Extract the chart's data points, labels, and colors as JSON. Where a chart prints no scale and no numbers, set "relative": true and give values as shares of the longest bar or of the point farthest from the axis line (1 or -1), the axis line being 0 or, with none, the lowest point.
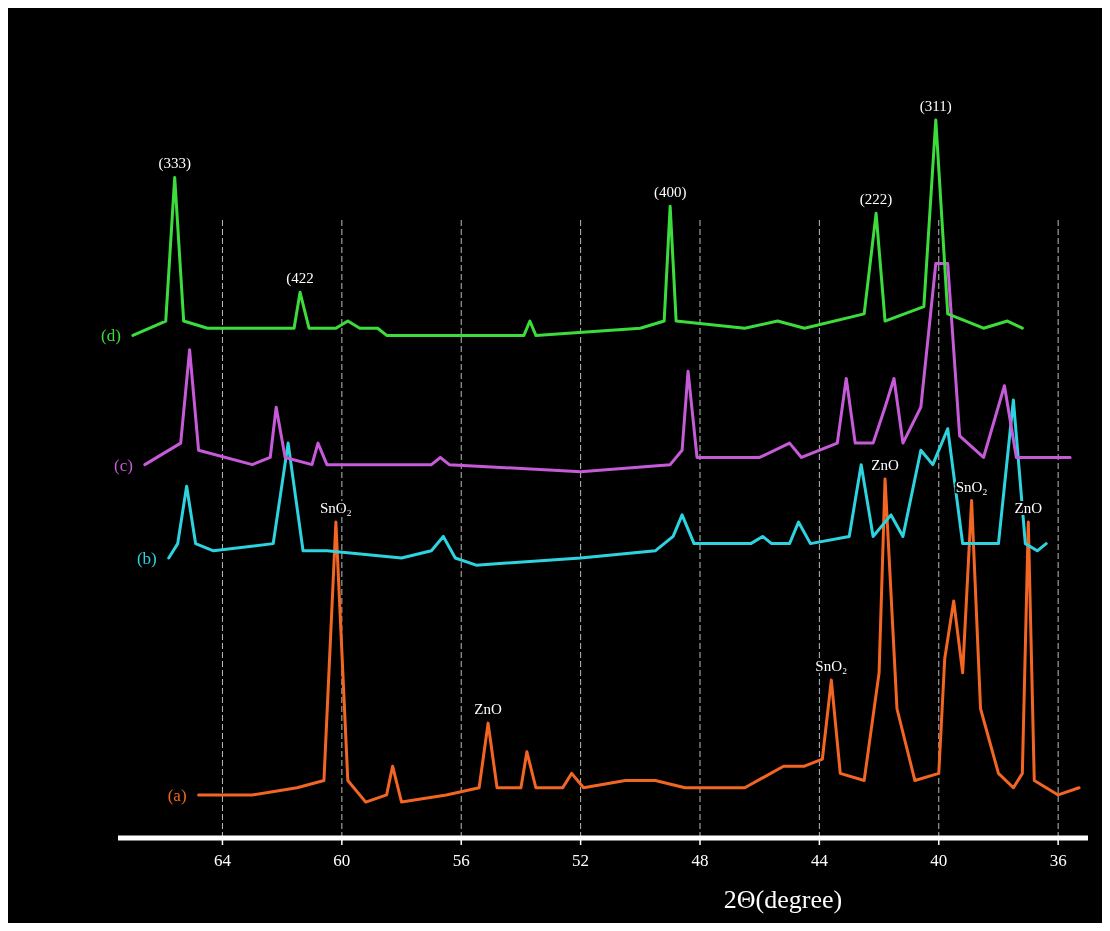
{
  "chart_data": {
    "type": "line",
    "relative": true,
    "xlabel": "2Θ(degree)",
    "xlim": [
      67.5,
      35
    ],
    "xticks": [
      64,
      60,
      56,
      52,
      48,
      44,
      40,
      36
    ],
    "grid": "x",
    "series": [
      {
        "name": "(a)",
        "color": "#f26522",
        "x": [
          64.8,
          63,
          61.5,
          60.6,
          60.2,
          59.8,
          59.2,
          58.5,
          58.3,
          58.0,
          56.5,
          55.4,
          55.1,
          54.8,
          54.0,
          53.8,
          53.5,
          52.6,
          52.3,
          51.9,
          50.5,
          49.5,
          48.5,
          47.5,
          46.5,
          45.2,
          44.5,
          43.9,
          43.6,
          43.3,
          42.5,
          42.0,
          41.8,
          41.4,
          40.8,
          40.0,
          39.8,
          39.5,
          39.2,
          38.9,
          38.6,
          38.0,
          37.5,
          37.2,
          37.0,
          36.8,
          36.0,
          35.3
        ],
        "values": [
          0.06,
          0.06,
          0.07,
          0.08,
          0.44,
          0.08,
          0.05,
          0.06,
          0.1,
          0.05,
          0.06,
          0.07,
          0.16,
          0.07,
          0.07,
          0.12,
          0.07,
          0.07,
          0.09,
          0.07,
          0.08,
          0.08,
          0.07,
          0.07,
          0.07,
          0.1,
          0.1,
          0.11,
          0.22,
          0.09,
          0.08,
          0.23,
          0.5,
          0.18,
          0.08,
          0.09,
          0.25,
          0.33,
          0.23,
          0.47,
          0.18,
          0.09,
          0.07,
          0.09,
          0.44,
          0.08,
          0.06,
          0.07
        ]
      },
      {
        "name": "(b)",
        "color": "#2ed3e0",
        "x": [
          65.8,
          65.5,
          65.2,
          64.9,
          64.3,
          62.3,
          61.8,
          61.3,
          60.5,
          58.0,
          57.0,
          56.6,
          56.2,
          55.5,
          52,
          49.5,
          48.9,
          48.6,
          48.2,
          46.3,
          45.9,
          45.6,
          45.0,
          44.7,
          44.3,
          43.0,
          42.6,
          42.2,
          41.6,
          41.2,
          40.6,
          40.2,
          39.7,
          39.2,
          38.0,
          37.5,
          37.1,
          36.7,
          36.4
        ],
        "values": [
          0.39,
          0.41,
          0.49,
          0.41,
          0.4,
          0.41,
          0.55,
          0.4,
          0.4,
          0.39,
          0.4,
          0.42,
          0.39,
          0.38,
          0.39,
          0.4,
          0.42,
          0.45,
          0.41,
          0.41,
          0.42,
          0.41,
          0.41,
          0.44,
          0.41,
          0.42,
          0.52,
          0.42,
          0.45,
          0.42,
          0.54,
          0.52,
          0.57,
          0.41,
          0.41,
          0.61,
          0.41,
          0.4,
          0.41
        ]
      },
      {
        "name": "(c)",
        "color": "#c65ad8",
        "x": [
          66.6,
          65.4,
          65.1,
          64.8,
          63.0,
          62.4,
          62.2,
          61.9,
          61.0,
          60.8,
          60.5,
          57,
          56.7,
          56.4,
          52,
          49,
          48.6,
          48.4,
          48.1,
          46,
          45.0,
          44.6,
          43.4,
          43.1,
          42.8,
          42.2,
          41.8,
          41.5,
          41.2,
          40.6,
          40.1,
          39.7,
          39.3,
          38.5,
          37.8,
          37.4,
          36.5,
          35.6
        ],
        "values": [
          0.52,
          0.55,
          0.68,
          0.54,
          0.52,
          0.53,
          0.6,
          0.53,
          0.52,
          0.55,
          0.52,
          0.52,
          0.53,
          0.52,
          0.51,
          0.52,
          0.54,
          0.65,
          0.53,
          0.53,
          0.55,
          0.53,
          0.55,
          0.64,
          0.55,
          0.55,
          0.6,
          0.64,
          0.55,
          0.6,
          0.8,
          0.8,
          0.56,
          0.53,
          0.63,
          0.53,
          0.53,
          0.53
        ]
      },
      {
        "name": "(d)",
        "color": "#3ddc3d",
        "x": [
          67.0,
          65.9,
          65.6,
          65.3,
          64.5,
          63,
          61.6,
          61.4,
          61.1,
          60.2,
          59.8,
          59.4,
          58.8,
          58.5,
          55,
          53.9,
          53.7,
          53.5,
          50,
          49.2,
          49.0,
          48.8,
          46.5,
          45.4,
          44.5,
          42.5,
          42.1,
          41.8,
          40.5,
          40.1,
          39.7,
          38.5,
          37.7,
          37.2
        ],
        "values": [
          0.7,
          0.72,
          0.92,
          0.72,
          0.71,
          0.71,
          0.71,
          0.76,
          0.71,
          0.71,
          0.72,
          0.71,
          0.71,
          0.7,
          0.7,
          0.7,
          0.72,
          0.7,
          0.71,
          0.72,
          0.88,
          0.72,
          0.71,
          0.72,
          0.71,
          0.73,
          0.87,
          0.72,
          0.74,
          1.0,
          0.73,
          0.71,
          0.72,
          0.71
        ]
      }
    ],
    "annotations": [
      {
        "text": "SnO₂",
        "x": 60.2,
        "y": 0.44
      },
      {
        "text": "ZnO",
        "x": 55.1,
        "y": 0.16
      },
      {
        "text": "SnO₂",
        "x": 43.6,
        "y": 0.22
      },
      {
        "text": "ZnO",
        "x": 41.8,
        "y": 0.5
      },
      {
        "text": "SnO₂",
        "x": 38.9,
        "y": 0.47
      },
      {
        "text": "ZnO",
        "x": 37.0,
        "y": 0.44
      },
      {
        "text": "(333)",
        "x": 65.6,
        "y": 0.92
      },
      {
        "text": "(422",
        "x": 61.4,
        "y": 0.76
      },
      {
        "text": "(400)",
        "x": 49.0,
        "y": 0.88
      },
      {
        "text": "(222)",
        "x": 42.1,
        "y": 0.87
      },
      {
        "text": "(311)",
        "x": 40.1,
        "y": 1.0
      }
    ]
  }
}
